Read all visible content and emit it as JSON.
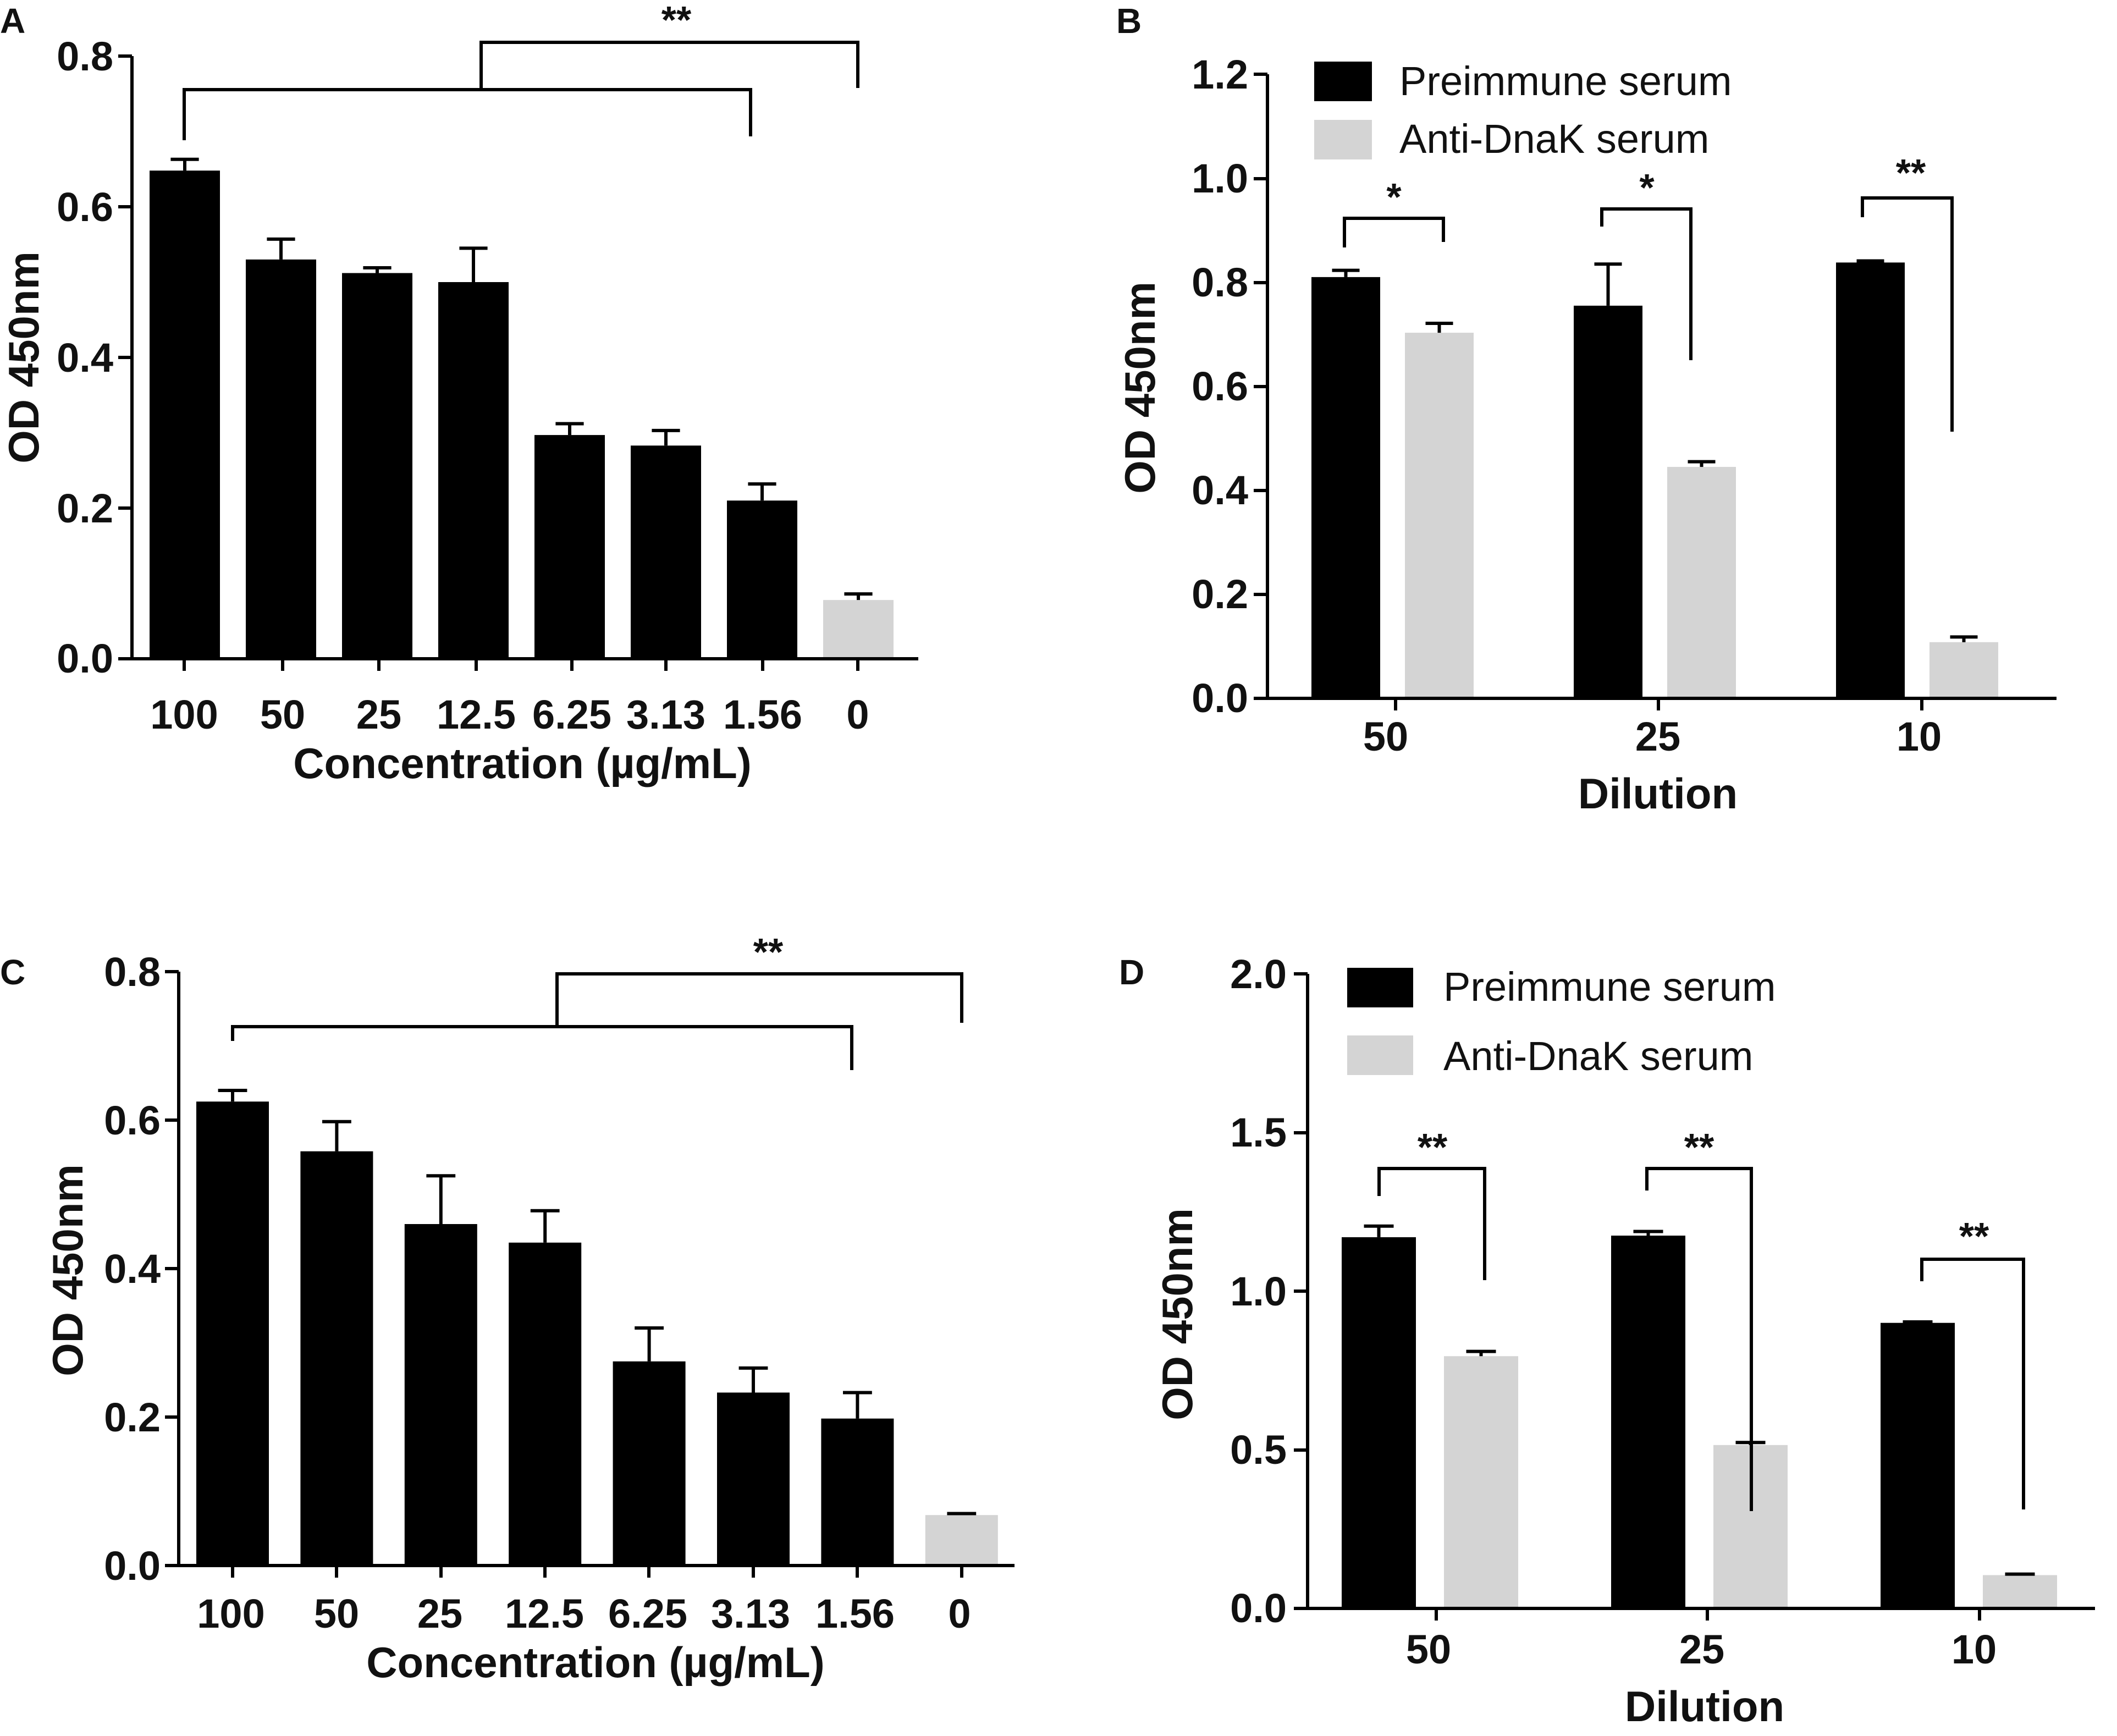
{
  "figure": {
    "colors": {
      "preimmune": "#000000",
      "anti": "#d4d4d4",
      "axis": "#000000"
    }
  },
  "chart_data": [
    {
      "panel": "A",
      "type": "bar",
      "xlabel": "Concentration (µg/mL)",
      "ylabel": "OD 450nm",
      "ylim": [
        0,
        0.8
      ],
      "yticks": [
        "0.0",
        "0.2",
        "0.4",
        "0.6",
        "0.8"
      ],
      "categories": [
        "100",
        "50",
        "25",
        "12.5",
        "6.25",
        "3.13",
        "1.56",
        "0"
      ],
      "values": [
        0.648,
        0.53,
        0.512,
        0.5,
        0.297,
        0.283,
        0.21,
        0.078
      ],
      "errors": [
        0.015,
        0.027,
        0.007,
        0.045,
        0.015,
        0.02,
        0.022,
        0.008
      ],
      "bar_colors": [
        "#000000",
        "#000000",
        "#000000",
        "#000000",
        "#000000",
        "#000000",
        "#000000",
        "#d4d4d4"
      ],
      "significance": {
        "label": "**",
        "groups": [
          "100–1.56",
          "0"
        ]
      }
    },
    {
      "panel": "B",
      "type": "bar",
      "xlabel": "Dilution",
      "ylabel": "OD 450nm",
      "ylim": [
        0,
        1.2
      ],
      "yticks": [
        "0.0",
        "0.2",
        "0.4",
        "0.6",
        "0.8",
        "1.0",
        "1.2"
      ],
      "categories": [
        "50",
        "25",
        "10"
      ],
      "series": [
        {
          "name": "Preimmune serum",
          "values": [
            0.81,
            0.755,
            0.838
          ],
          "errors": [
            0.013,
            0.08,
            0.003
          ]
        },
        {
          "name": "Anti-DnaK serum",
          "values": [
            0.703,
            0.445,
            0.108
          ],
          "errors": [
            0.018,
            0.01,
            0.01
          ]
        }
      ],
      "significance": [
        {
          "category": "50",
          "label": "*"
        },
        {
          "category": "25",
          "label": "*"
        },
        {
          "category": "10",
          "label": "**"
        }
      ]
    },
    {
      "panel": "C",
      "type": "bar",
      "xlabel": "Concentration (µg/mL)",
      "ylabel": "OD 450nm",
      "ylim": [
        0,
        0.8
      ],
      "yticks": [
        "0.0",
        "0.2",
        "0.4",
        "0.6",
        "0.8"
      ],
      "categories": [
        "100",
        "50",
        "25",
        "12.5",
        "6.25",
        "3.13",
        "1.56",
        "0"
      ],
      "values": [
        0.625,
        0.558,
        0.46,
        0.435,
        0.275,
        0.233,
        0.198,
        0.068
      ],
      "errors": [
        0.015,
        0.04,
        0.065,
        0.043,
        0.045,
        0.033,
        0.035,
        0.002
      ],
      "bar_colors": [
        "#000000",
        "#000000",
        "#000000",
        "#000000",
        "#000000",
        "#000000",
        "#000000",
        "#d4d4d4"
      ],
      "significance": {
        "label": "**",
        "groups": [
          "100–1.56",
          "0"
        ]
      }
    },
    {
      "panel": "D",
      "type": "bar",
      "xlabel": "Dilution",
      "ylabel": "OD 450nm",
      "ylim": [
        0,
        2.0
      ],
      "yticks": [
        "0.0",
        "0.5",
        "1.0",
        "1.5",
        "2.0"
      ],
      "categories": [
        "50",
        "25",
        "10"
      ],
      "series": [
        {
          "name": "Preimmune serum",
          "values": [
            1.17,
            1.175,
            0.9
          ],
          "errors": [
            0.035,
            0.013,
            0.003
          ]
        },
        {
          "name": "Anti-DnaK serum",
          "values": [
            0.795,
            0.515,
            0.105
          ],
          "errors": [
            0.015,
            0.008,
            0.003
          ]
        }
      ],
      "significance": [
        {
          "category": "50",
          "label": "**"
        },
        {
          "category": "25",
          "label": "**"
        },
        {
          "category": "10",
          "label": "**"
        }
      ]
    }
  ]
}
